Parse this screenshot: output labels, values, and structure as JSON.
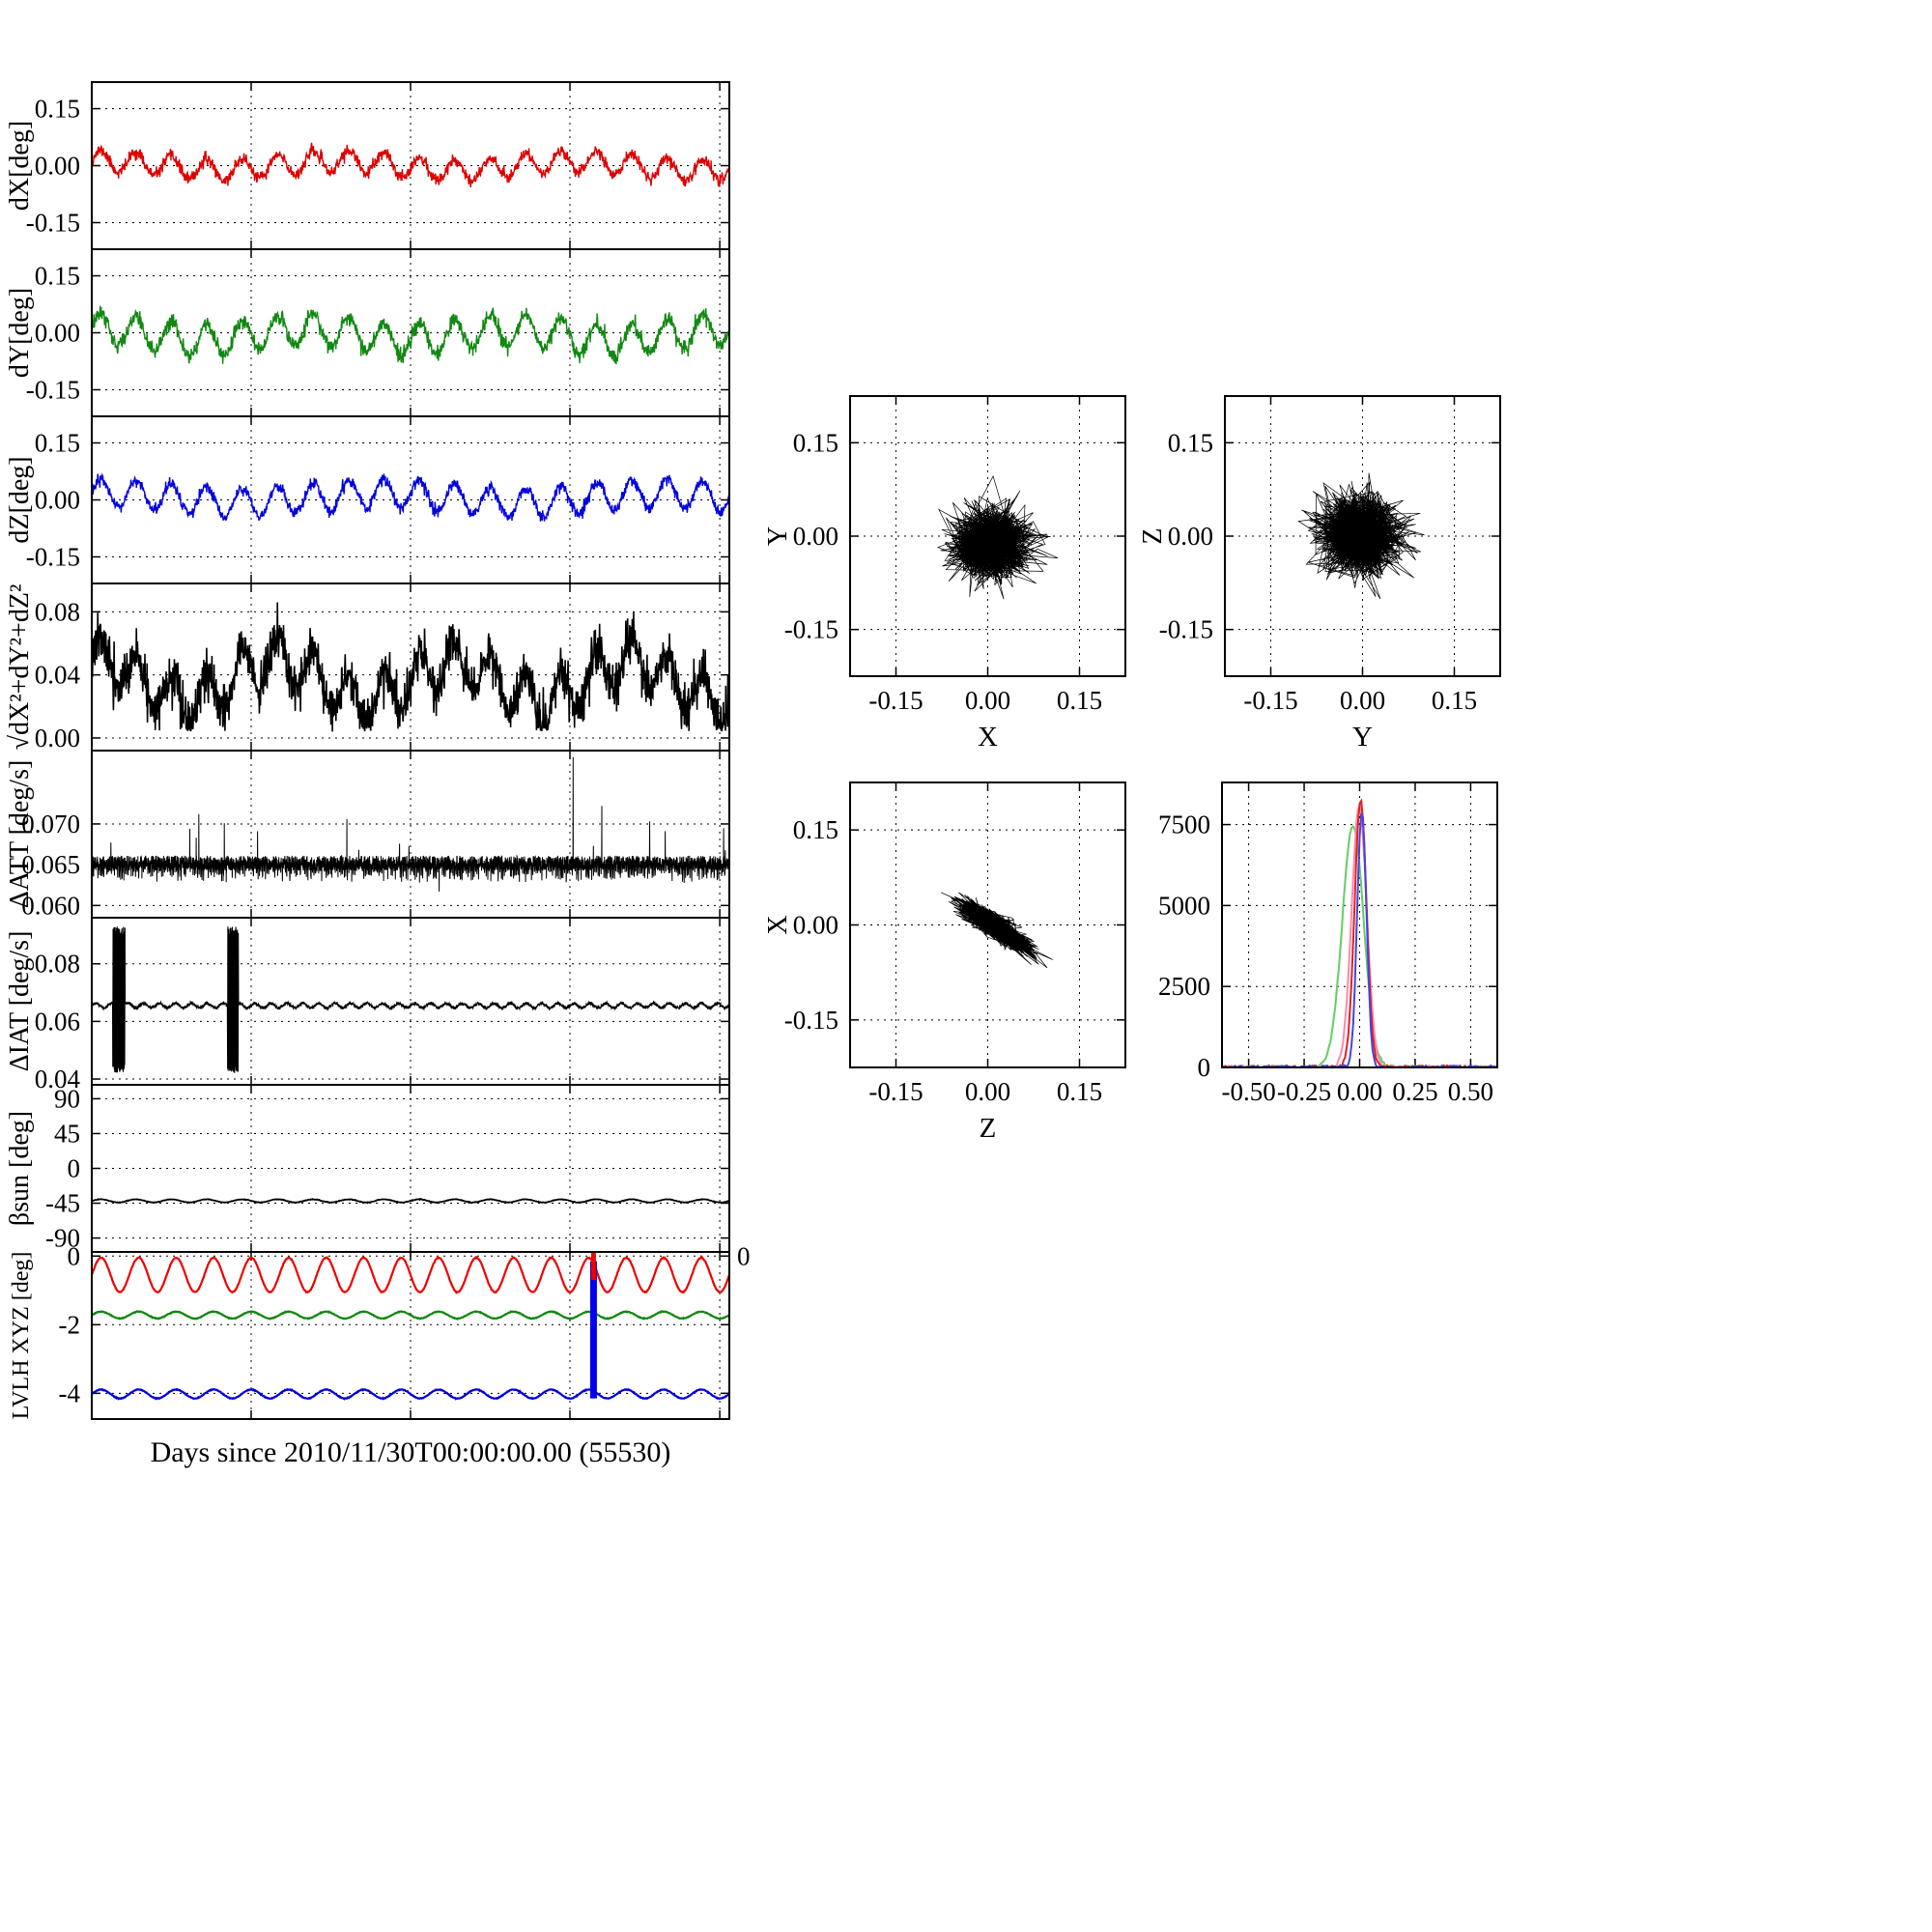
{
  "figure": {
    "xlabel": "Days since 2010/11/30T00:00:00.00 (55530)",
    "background": "#ffffff"
  },
  "chart_data": [
    {
      "id": "dx",
      "type": "line",
      "ylabel": "dX[deg]",
      "ylim": [
        -0.22,
        0.22
      ],
      "yticks": [
        0.15,
        0.0,
        -0.15
      ],
      "ytick_labels": [
        "0.15",
        "0.00",
        "-0.15"
      ],
      "xgrid": [
        0.25,
        0.5,
        0.75,
        0.985
      ],
      "series": [
        {
          "name": "dX",
          "color": "#dd0000",
          "width": 1.4,
          "gen": {
            "kind": "osc",
            "mean": 0.0,
            "amp": 0.028,
            "cycles": 18,
            "amp2": 0.012,
            "cycles2": 2.7,
            "noise": 0.008,
            "seed": 11,
            "n": 1500
          }
        }
      ]
    },
    {
      "id": "dy",
      "type": "line",
      "ylabel": "dY[deg]",
      "ylim": [
        -0.22,
        0.22
      ],
      "yticks": [
        0.15,
        0.0,
        -0.15
      ],
      "ytick_labels": [
        "0.15",
        "0.00",
        "-0.15"
      ],
      "xgrid": [
        0.25,
        0.5,
        0.75,
        0.985
      ],
      "series": [
        {
          "name": "dY",
          "color": "#118811",
          "width": 1.4,
          "gen": {
            "kind": "osc",
            "mean": -0.005,
            "amp": 0.042,
            "cycles": 18,
            "amp2": 0.015,
            "cycles2": 3.1,
            "noise": 0.01,
            "seed": 12,
            "n": 1500
          }
        }
      ]
    },
    {
      "id": "dz",
      "type": "line",
      "ylabel": "dZ[deg]",
      "ylim": [
        -0.22,
        0.22
      ],
      "yticks": [
        0.15,
        0.0,
        -0.15
      ],
      "ytick_labels": [
        "0.15",
        "0.00",
        "-0.15"
      ],
      "xgrid": [
        0.25,
        0.5,
        0.75,
        0.985
      ],
      "series": [
        {
          "name": "dZ",
          "color": "#0000dd",
          "width": 1.4,
          "gen": {
            "kind": "osc",
            "mean": 0.005,
            "amp": 0.038,
            "cycles": 18,
            "amp2": 0.012,
            "cycles2": 2.3,
            "noise": 0.008,
            "seed": 13,
            "n": 1500
          }
        }
      ]
    },
    {
      "id": "mag",
      "type": "line",
      "ylabel": "√dX²+dY²+dZ²",
      "ylim": [
        -0.008,
        0.098
      ],
      "yticks": [
        0.08,
        0.04,
        0.0
      ],
      "ytick_labels": [
        "0.08",
        "0.04",
        "0.00"
      ],
      "xgrid": [
        0.25,
        0.5,
        0.75,
        0.985
      ],
      "series": [
        {
          "name": "magnitude",
          "color": "#000000",
          "width": 1.6,
          "gen": {
            "kind": "mag",
            "mean": 0.036,
            "amp": 0.015,
            "cycles": 18,
            "amp2": 0.013,
            "cycles2": 3.6,
            "noise": 0.0075,
            "seed": 14,
            "n": 1800
          }
        }
      ]
    },
    {
      "id": "datt",
      "type": "line",
      "ylabel": "ΔATT [deg/s]",
      "ylim": [
        0.0585,
        0.079
      ],
      "yticks": [
        0.07,
        0.065,
        0.06
      ],
      "ytick_labels": [
        "0.070",
        "0.065",
        "0.060"
      ],
      "xgrid": [
        0.25,
        0.5,
        0.75,
        0.985
      ],
      "series": [
        {
          "name": "delta-att",
          "color": "#000000",
          "width": 1.0,
          "gen": {
            "kind": "band",
            "mean": 0.0652,
            "noise": 0.0009,
            "comb": 0.0016,
            "seed": 15,
            "n": 3800,
            "spikes": [
              {
                "t": 0.168,
                "v": 0.0712
              },
              {
                "t": 0.208,
                "v": 0.0701
              },
              {
                "t": 0.4,
                "v": 0.0706
              },
              {
                "t": 0.545,
                "v": 0.0617
              },
              {
                "t": 0.755,
                "v": 0.0782
              },
              {
                "t": 0.8,
                "v": 0.0722
              },
              {
                "t": 0.875,
                "v": 0.0703
              }
            ]
          }
        }
      ]
    },
    {
      "id": "diat",
      "type": "line",
      "ylabel": "ΔIAT [deg/s]",
      "ylim": [
        0.038,
        0.096
      ],
      "yticks": [
        0.08,
        0.06,
        0.04
      ],
      "ytick_labels": [
        "0.08",
        "0.06",
        "0.04"
      ],
      "xgrid": [
        0.25,
        0.5,
        0.75,
        0.985
      ],
      "series": [
        {
          "name": "delta-iat",
          "color": "#000000",
          "width": 1.2,
          "gen": {
            "kind": "burst",
            "mean": 0.0655,
            "noise": 0.0005,
            "wamp": 0.0008,
            "wcycles": 40,
            "seed": 16,
            "n": 2600,
            "bursts": [
              {
                "t0": 0.033,
                "t1": 0.052,
                "lo": 0.0435,
                "hi": 0.0915
              },
              {
                "t0": 0.213,
                "t1": 0.23,
                "lo": 0.0435,
                "hi": 0.0915
              }
            ]
          }
        }
      ]
    },
    {
      "id": "beta",
      "type": "line",
      "ylabel": "βsun [deg]",
      "ylim": [
        -108,
        108
      ],
      "yticks": [
        90,
        45,
        0,
        -45,
        -90
      ],
      "ytick_labels": [
        "90",
        "45",
        "0",
        "-45",
        "-90"
      ],
      "xgrid": [
        0.25,
        0.5,
        0.75,
        0.985
      ],
      "series": [
        {
          "name": "beta-sun",
          "color": "#000000",
          "width": 1.8,
          "gen": {
            "kind": "osc",
            "mean": -42,
            "amp": 2,
            "cycles": 18,
            "noise": 0.2,
            "seed": 17,
            "n": 1200
          }
        }
      ]
    },
    {
      "id": "lvlh",
      "type": "line",
      "ylabel": "LVLH XYZ [deg]",
      "ylim": [
        -4.75,
        0.12
      ],
      "yticks": [
        0,
        -2,
        -4
      ],
      "ytick_labels": [
        "0",
        "-2",
        "-4"
      ],
      "xgrid": [
        0.25,
        0.5,
        0.75,
        0.985
      ],
      "extra_labels": [
        {
          "frac": 1.0,
          "yval": 0,
          "text": "0"
        }
      ],
      "series": [
        {
          "name": "lvlh-x",
          "color": "#ee0000",
          "width": 2.2,
          "gen": {
            "kind": "osc",
            "mean": -0.55,
            "amp": 0.5,
            "cycles": 17,
            "noise": 0.006,
            "seed": 18,
            "n": 1400
          }
        },
        {
          "name": "lvlh-y",
          "color": "#118811",
          "width": 2.2,
          "gen": {
            "kind": "osc",
            "mean": -1.72,
            "amp": 0.1,
            "cycles": 17,
            "noise": 0.005,
            "seed": 19,
            "n": 1400
          }
        },
        {
          "name": "lvlh-z",
          "color": "#0000dd",
          "width": 2.2,
          "gen": {
            "kind": "osc",
            "mean": -4.02,
            "amp": 0.13,
            "cycles": 17,
            "noise": 0.005,
            "seed": 20,
            "n": 1400
          }
        }
      ],
      "events": [
        {
          "t": 0.787,
          "y0": -4.15,
          "y1": -0.15,
          "color": "#0000ee",
          "width": 7
        },
        {
          "t": 0.787,
          "y0": -0.7,
          "y1": 0.1,
          "color": "#ee0000",
          "width": 5
        }
      ]
    },
    {
      "id": "scatter_xy",
      "type": "scatter",
      "xlabel": "X",
      "ylabel": "Y",
      "xlim": [
        -0.225,
        0.225
      ],
      "ylim": [
        -0.225,
        0.225
      ],
      "xticks": [
        -0.15,
        0.0,
        0.15
      ],
      "xtick_labels": [
        "-0.15",
        "0.00",
        "0.15"
      ],
      "yticks": [
        0.15,
        0.0,
        -0.15
      ],
      "ytick_labels": [
        "0.15",
        "0.00",
        "-0.15"
      ],
      "color": "#000000",
      "gen": {
        "n": 1500,
        "cx": 0.005,
        "cy": -0.012,
        "sx": 0.03,
        "sy": 0.026,
        "slope": 0,
        "seed": 21
      }
    },
    {
      "id": "scatter_yz",
      "type": "scatter",
      "xlabel": "Y",
      "ylabel": "Z",
      "xlim": [
        -0.225,
        0.225
      ],
      "ylim": [
        -0.225,
        0.225
      ],
      "xticks": [
        -0.15,
        0.0,
        0.15
      ],
      "xtick_labels": [
        "-0.15",
        "0.00",
        "0.15"
      ],
      "yticks": [
        0.15,
        0.0,
        -0.15
      ],
      "ytick_labels": [
        "0.15",
        "0.00",
        "-0.15"
      ],
      "color": "#000000",
      "gen": {
        "n": 1500,
        "cx": -0.005,
        "cy": 0.003,
        "sx": 0.032,
        "sy": 0.03,
        "slope": 0,
        "seed": 22
      }
    },
    {
      "id": "scatter_zx",
      "type": "scatter",
      "xlabel": "Z",
      "ylabel": "X",
      "xlim": [
        -0.225,
        0.225
      ],
      "ylim": [
        -0.225,
        0.225
      ],
      "xticks": [
        -0.15,
        0.0,
        0.15
      ],
      "xtick_labels": [
        "-0.15",
        "0.00",
        "0.15"
      ],
      "yticks": [
        0.15,
        0.0,
        -0.15
      ],
      "ytick_labels": [
        "0.15",
        "0.00",
        "-0.15"
      ],
      "color": "#000000",
      "gen": {
        "n": 1600,
        "cx": 0.012,
        "cy": -0.002,
        "sx": 0.025,
        "sy": 0.009,
        "slope": -0.6,
        "seed": 23
      }
    },
    {
      "id": "hist",
      "type": "hist",
      "xlim": [
        -0.62,
        0.62
      ],
      "ylim": [
        0,
        8800
      ],
      "xticks": [
        -0.5,
        -0.25,
        0.0,
        0.25,
        0.5
      ],
      "xtick_labels": [
        "-0.50",
        "-0.25",
        "0.00",
        "0.25",
        "0.50"
      ],
      "yticks": [
        7500,
        5000,
        2500,
        0
      ],
      "ytick_labels": [
        "7500",
        "5000",
        "2500",
        "0"
      ],
      "series": [
        {
          "name": "hist-green",
          "color": "#66cc66",
          "mu": -0.03,
          "sigma": 0.048,
          "peak": 7500
        },
        {
          "name": "hist-pink",
          "color": "#ff88aa",
          "mu": -0.002,
          "sigma": 0.034,
          "peak": 8050
        },
        {
          "name": "hist-red",
          "color": "#dd2222",
          "mu": 0.004,
          "sigma": 0.027,
          "peak": 8250
        },
        {
          "name": "hist-blue",
          "color": "#4444dd",
          "mu": 0.01,
          "sigma": 0.021,
          "peak": 7950
        }
      ]
    }
  ]
}
